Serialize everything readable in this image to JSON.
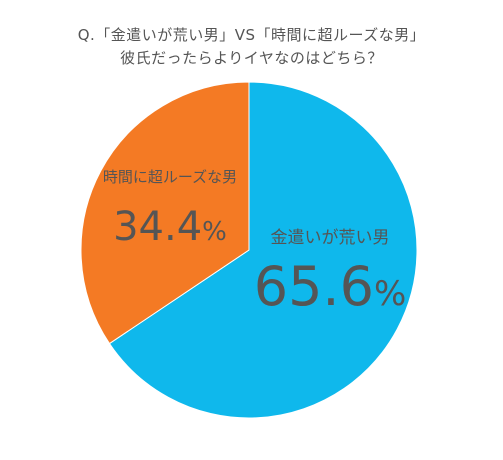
{
  "title": {
    "line1": "Q.「金遣いが荒い男」VS「時間に超ルーズな男」",
    "line2": "彼氏だったらよりイヤなのはどちら？"
  },
  "chart_data": {
    "type": "pie",
    "start_angle_deg": 0,
    "direction": "clockwise",
    "slices": [
      {
        "label": "金遣いが荒い男",
        "value": 65.6,
        "value_num": "65.6",
        "value_unit": "%",
        "color": "#0fb8ec"
      },
      {
        "label": "時間に超ルーズな男",
        "value": 34.4,
        "value_num": "34.4",
        "value_unit": "%",
        "color": "#f47a24"
      }
    ]
  }
}
